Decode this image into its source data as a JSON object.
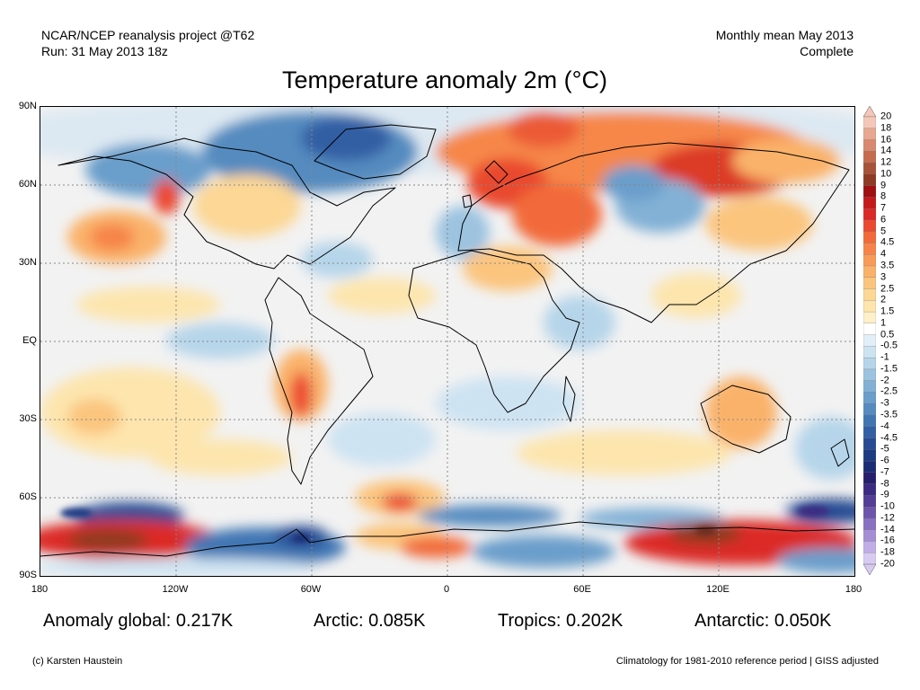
{
  "header": {
    "line1_left": "NCAR/NCEP reanalysis project @T62",
    "line2_left": "Run: 31 May 2013 18z",
    "line1_right": "Monthly mean May 2013",
    "line2_right": "Complete"
  },
  "title": "Temperature anomaly 2m (°C)",
  "axes": {
    "lat_ticks": [
      "90N",
      "60N",
      "30N",
      "EQ",
      "30S",
      "60S",
      "90S"
    ],
    "lon_ticks": [
      "180",
      "120W",
      "60W",
      "0",
      "60E",
      "120E",
      "180"
    ]
  },
  "stats": {
    "global": "Anomaly global: 0.217K",
    "arctic": "Arctic: 0.085K",
    "tropics": "Tropics: 0.202K",
    "antarctic": "Antarctic: 0.050K"
  },
  "footer": {
    "left": "(c) Karsten Haustein",
    "right": "Climatology for 1981-2010 reference period | GISS adjusted"
  },
  "colorbar": {
    "labels": [
      "20",
      "18",
      "16",
      "14",
      "12",
      "10",
      "9",
      "8",
      "7",
      "6",
      "5",
      "4.5",
      "4",
      "3.5",
      "3",
      "2.5",
      "2",
      "1.5",
      "1",
      "0.5",
      "-0.5",
      "-1",
      "-1.5",
      "-2",
      "-2.5",
      "-3",
      "-3.5",
      "-4",
      "-4.5",
      "-5",
      "-6",
      "-7",
      "-8",
      "-9",
      "-10",
      "-12",
      "-14",
      "-16",
      "-18",
      "-20"
    ],
    "colors": [
      "#f4c7b8",
      "#e7a88f",
      "#d8896f",
      "#c56c4f",
      "#a85238",
      "#8f3a24",
      "#a00f12",
      "#c51a1b",
      "#dc2a26",
      "#eb4a31",
      "#f26a3a",
      "#f6844a",
      "#f89b58",
      "#fab26a",
      "#fbc57e",
      "#fcd795",
      "#fde5ad",
      "#fef0c8",
      "#ffffff",
      "#e2eef8",
      "#cde3f2",
      "#b6d5ea",
      "#9cc3e0",
      "#82b1d5",
      "#6a9ecb",
      "#558bbf",
      "#4176b3",
      "#335fa4",
      "#274c93",
      "#1d3b83",
      "#1b2d75",
      "#271f6d",
      "#3d2a82",
      "#553e97",
      "#6e55ac",
      "#8a70c1",
      "#a68ed5",
      "#c1aee6",
      "#d8cbf2"
    ]
  }
}
